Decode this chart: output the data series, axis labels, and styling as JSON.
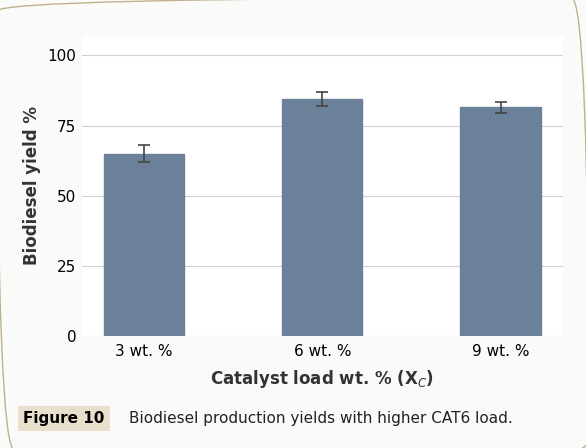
{
  "categories": [
    "3 wt. %",
    "6 wt. %",
    "9 wt. %"
  ],
  "values": [
    65.0,
    84.5,
    81.5
  ],
  "errors": [
    3.0,
    2.5,
    2.0
  ],
  "bar_color": "#6b8099",
  "bar_width": 0.45,
  "ylabel": "Biodiesel yield %",
  "xlabel": "Catalyst load wt. % (X$_C$)",
  "ylim": [
    0,
    107
  ],
  "yticks": [
    0,
    25,
    50,
    75,
    100
  ],
  "grid_color": "#d0d0d0",
  "background_color": "#fafaf8",
  "plot_bg_color": "#ffffff",
  "figure_caption_bold": "Figure 10",
  "figure_caption_text": "Biodiesel production yields with higher CAT6 load.",
  "caption_bg": "#e8e0cc",
  "error_capsize": 4,
  "error_color": "#444444",
  "error_linewidth": 1.2,
  "ylabel_fontsize": 12,
  "xlabel_fontsize": 12,
  "tick_fontsize": 11,
  "caption_fontsize": 11
}
